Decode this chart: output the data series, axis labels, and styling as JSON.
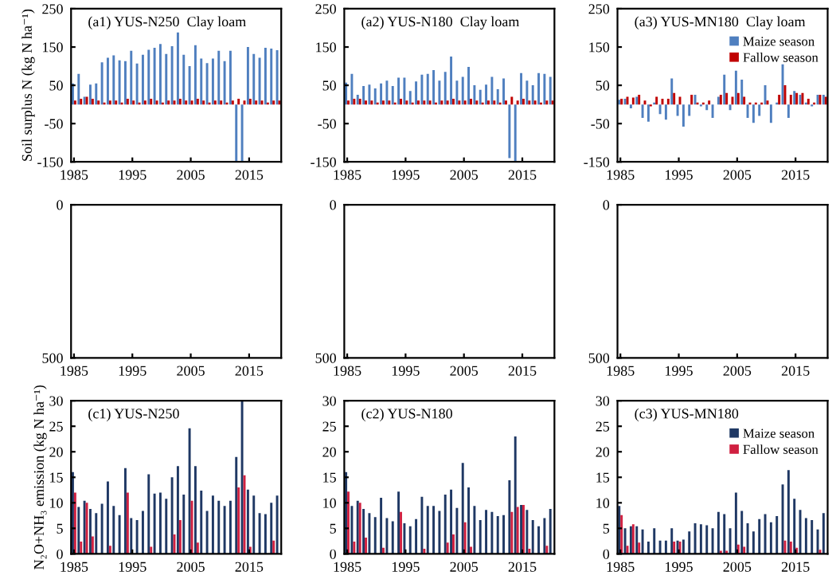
{
  "chart_data": [
    {
      "type": "bar",
      "title": "(a1) YUS-N250  Clay loam",
      "ylabel": "Soil surplus N (kg N ha⁻¹)",
      "x": [
        1985,
        1986,
        1987,
        1988,
        1989,
        1990,
        1991,
        1992,
        1993,
        1994,
        1995,
        1996,
        1997,
        1998,
        1999,
        2000,
        2001,
        2002,
        2003,
        2004,
        2005,
        2006,
        2007,
        2008,
        2009,
        2010,
        2011,
        2012,
        2013,
        2014,
        2015,
        2016,
        2017,
        2018,
        2019,
        2020
      ],
      "xlim": [
        1984.5,
        2020.5
      ],
      "xticks": [
        1985,
        1995,
        2005,
        2015
      ],
      "ylim": [
        -150,
        250
      ],
      "yticks": [
        -150,
        -50,
        50,
        150,
        250
      ],
      "legend": false,
      "series": [
        {
          "color": "#4f7fbf",
          "values": [
            55,
            80,
            20,
            52,
            55,
            110,
            122,
            128,
            115,
            113,
            140,
            107,
            130,
            143,
            148,
            158,
            132,
            152,
            188,
            130,
            100,
            155,
            120,
            108,
            120,
            140,
            113,
            140,
            -150,
            -150,
            150,
            132,
            122,
            148,
            146,
            142
          ]
        },
        {
          "color": "#c00000",
          "values": [
            10,
            15,
            20,
            15,
            10,
            5,
            10,
            10,
            5,
            15,
            10,
            5,
            10,
            15,
            10,
            5,
            10,
            10,
            15,
            10,
            10,
            15,
            10,
            5,
            10,
            10,
            5,
            10,
            15,
            10,
            15,
            10,
            10,
            5,
            10,
            10
          ]
        }
      ]
    },
    {
      "type": "bar",
      "title": "(a2) YUS-N180  Clay loam",
      "x": [
        1985,
        1986,
        1987,
        1988,
        1989,
        1990,
        1991,
        1992,
        1993,
        1994,
        1995,
        1996,
        1997,
        1998,
        1999,
        2000,
        2001,
        2002,
        2003,
        2004,
        2005,
        2006,
        2007,
        2008,
        2009,
        2010,
        2011,
        2012,
        2013,
        2014,
        2015,
        2016,
        2017,
        2018,
        2019,
        2020
      ],
      "xlim": [
        1984.5,
        2020.5
      ],
      "xticks": [
        1985,
        1995,
        2005,
        2015
      ],
      "ylim": [
        -150,
        250
      ],
      "yticks": [
        -150,
        -50,
        50,
        150,
        250
      ],
      "legend": false,
      "series": [
        {
          "color": "#4f7fbf",
          "values": [
            57,
            80,
            25,
            48,
            52,
            42,
            55,
            62,
            48,
            70,
            70,
            35,
            60,
            78,
            80,
            90,
            62,
            85,
            125,
            62,
            72,
            98,
            50,
            38,
            52,
            72,
            40,
            68,
            -140,
            -150,
            82,
            62,
            50,
            82,
            80,
            72
          ]
        },
        {
          "color": "#c00000",
          "values": [
            10,
            15,
            15,
            10,
            10,
            5,
            10,
            10,
            5,
            15,
            10,
            5,
            10,
            10,
            10,
            5,
            10,
            10,
            15,
            10,
            10,
            15,
            10,
            5,
            10,
            10,
            5,
            10,
            20,
            10,
            15,
            10,
            10,
            5,
            10,
            10
          ]
        }
      ]
    },
    {
      "type": "bar",
      "title": "(a3) YUS-MN180  Clay loam",
      "x": [
        1985,
        1986,
        1987,
        1988,
        1989,
        1990,
        1991,
        1992,
        1993,
        1994,
        1995,
        1996,
        1997,
        1998,
        1999,
        2000,
        2001,
        2002,
        2003,
        2004,
        2005,
        2006,
        2007,
        2008,
        2009,
        2010,
        2011,
        2012,
        2013,
        2014,
        2015,
        2016,
        2017,
        2018,
        2019,
        2020
      ],
      "xlim": [
        1984.5,
        2020.5
      ],
      "xticks": [
        1985,
        1995,
        2005,
        2015
      ],
      "ylim": [
        -150,
        250
      ],
      "yticks": [
        -150,
        -50,
        50,
        150,
        250
      ],
      "legend": "top right",
      "series": [
        {
          "name": "Maize season",
          "color": "#4f7fbf",
          "values": [
            12,
            15,
            -10,
            20,
            -35,
            -45,
            5,
            -25,
            -40,
            68,
            -30,
            -58,
            -30,
            25,
            -5,
            -15,
            -35,
            20,
            78,
            -15,
            88,
            65,
            -35,
            -48,
            -30,
            50,
            -48,
            5,
            105,
            -35,
            35,
            25,
            5,
            -5,
            25,
            25
          ]
        },
        {
          "name": "Fallow season",
          "color": "#c00000",
          "values": [
            15,
            20,
            18,
            25,
            10,
            -5,
            20,
            15,
            15,
            30,
            20,
            0,
            25,
            5,
            5,
            10,
            0,
            25,
            30,
            20,
            30,
            20,
            5,
            5,
            5,
            10,
            0,
            25,
            50,
            25,
            30,
            30,
            15,
            5,
            25,
            20
          ]
        }
      ]
    },
    {
      "type": "bar",
      "xlim": [
        1984.5,
        2020.5
      ],
      "xticks": [
        1985,
        1995,
        2005,
        2015
      ],
      "ylim": [
        500,
        0
      ],
      "yticks": [
        0,
        500
      ],
      "legend": false
    },
    {
      "type": "bar",
      "xlim": [
        1984.5,
        2020.5
      ],
      "xticks": [
        1985,
        1995,
        2005,
        2015
      ],
      "ylim": [
        500,
        0
      ],
      "yticks": [
        0,
        500
      ],
      "legend": false
    },
    {
      "type": "bar",
      "xlim": [
        1984.5,
        2020.5
      ],
      "xticks": [
        1985,
        1995,
        2005,
        2015
      ],
      "ylim": [
        500,
        0
      ],
      "yticks": [
        0,
        500
      ],
      "legend": false
    },
    {
      "type": "bar",
      "title": "(c1) YUS-N250",
      "ylabel": "N₂O+NH₃ emission (kg N ha⁻¹)",
      "x": [
        1985,
        1986,
        1987,
        1988,
        1989,
        1990,
        1991,
        1992,
        1993,
        1994,
        1995,
        1996,
        1997,
        1998,
        1999,
        2000,
        2001,
        2002,
        2003,
        2004,
        2005,
        2006,
        2007,
        2008,
        2009,
        2010,
        2011,
        2012,
        2013,
        2014,
        2015,
        2016,
        2017,
        2018,
        2019,
        2020
      ],
      "xlim": [
        1984.5,
        2020.5
      ],
      "xticks": [
        1985,
        1995,
        2005,
        2015
      ],
      "ylim": [
        0,
        30
      ],
      "yticks": [
        0,
        5,
        10,
        15,
        20,
        25,
        30
      ],
      "legend": false,
      "series": [
        {
          "color": "#1f3864",
          "values": [
            16,
            9.2,
            10.4,
            8.8,
            8,
            9.8,
            14.2,
            9.4,
            7.6,
            16.8,
            7,
            6.6,
            8.4,
            15.6,
            11.8,
            12,
            10.8,
            15,
            17.2,
            11.6,
            24.6,
            17.2,
            12.4,
            8.4,
            11.4,
            10.4,
            9.4,
            10.4,
            19,
            30,
            12.6,
            11.4,
            8,
            7.8,
            10,
            11.4
          ]
        },
        {
          "color": "#d02040",
          "values": [
            12,
            2.4,
            10,
            3.4,
            0,
            0,
            1.6,
            0,
            0,
            12,
            0,
            0,
            0,
            1.4,
            0,
            0,
            0,
            3.8,
            6.6,
            0,
            10.4,
            2.2,
            0,
            0,
            0,
            0,
            0,
            0,
            13,
            15.4,
            1.4,
            0,
            0,
            0,
            2.6,
            0
          ]
        }
      ]
    },
    {
      "type": "bar",
      "title": "(c2) YUS-N180",
      "x": [
        1985,
        1986,
        1987,
        1988,
        1989,
        1990,
        1991,
        1992,
        1993,
        1994,
        1995,
        1996,
        1997,
        1998,
        1999,
        2000,
        2001,
        2002,
        2003,
        2004,
        2005,
        2006,
        2007,
        2008,
        2009,
        2010,
        2011,
        2012,
        2013,
        2014,
        2015,
        2016,
        2017,
        2018,
        2019,
        2020
      ],
      "xlim": [
        1984.5,
        2020.5
      ],
      "xticks": [
        1985,
        1995,
        2005,
        2015
      ],
      "ylim": [
        0,
        30
      ],
      "yticks": [
        0,
        5,
        10,
        15,
        20,
        25,
        30
      ],
      "legend": false,
      "series": [
        {
          "color": "#1f3864",
          "values": [
            16,
            9.4,
            10.4,
            8.8,
            8,
            7.2,
            11,
            7,
            6.4,
            12.2,
            6,
            5.4,
            6.8,
            11.2,
            9.4,
            9.4,
            8.4,
            11.6,
            12.6,
            9,
            17.8,
            13,
            9.4,
            6.6,
            8.6,
            8.2,
            7.4,
            7.6,
            14.4,
            23,
            9.6,
            8.6,
            6.6,
            5.4,
            7,
            8.8
          ]
        },
        {
          "color": "#d02040",
          "values": [
            12.2,
            2.4,
            10,
            3.2,
            0,
            0,
            1.2,
            0,
            0,
            8.2,
            0,
            0,
            0,
            1,
            0,
            0,
            0,
            2.2,
            3.8,
            0,
            6.2,
            1.4,
            0,
            0,
            0,
            0,
            0,
            0,
            8.2,
            9.2,
            9.6,
            1,
            0,
            0,
            1.6,
            0
          ]
        }
      ]
    },
    {
      "type": "bar",
      "title": "(c3) YUS-MN180",
      "x": [
        1985,
        1986,
        1987,
        1988,
        1989,
        1990,
        1991,
        1992,
        1993,
        1994,
        1995,
        1996,
        1997,
        1998,
        1999,
        2000,
        2001,
        2002,
        2003,
        2004,
        2005,
        2006,
        2007,
        2008,
        2009,
        2010,
        2011,
        2012,
        2013,
        2014,
        2015,
        2016,
        2017,
        2018,
        2019,
        2020
      ],
      "xlim": [
        1984.5,
        2020.5
      ],
      "xticks": [
        1985,
        1995,
        2005,
        2015
      ],
      "ylim": [
        0,
        30
      ],
      "yticks": [
        0,
        5,
        10,
        15,
        20,
        25,
        30
      ],
      "legend": "top right",
      "series": [
        {
          "name": "Maize season",
          "color": "#1f3864",
          "values": [
            9.4,
            5,
            5.4,
            5.4,
            4.8,
            2.4,
            5,
            2.6,
            2.6,
            5,
            2.6,
            2.8,
            4.4,
            6,
            5.8,
            5.6,
            5,
            8.2,
            7.8,
            5,
            12,
            8.4,
            6,
            4.4,
            6.8,
            7.8,
            6.2,
            7.4,
            13.6,
            16.4,
            10.8,
            8.6,
            7,
            6.6,
            4.8,
            8
          ]
        },
        {
          "name": "Fallow season",
          "color": "#d02040",
          "values": [
            7.6,
            1.6,
            5.8,
            2.2,
            0,
            0,
            0,
            0,
            0,
            2.4,
            2.4,
            0,
            0,
            0,
            0,
            0,
            0,
            0.6,
            0.6,
            0,
            1.8,
            1.4,
            0,
            0,
            0,
            0,
            0,
            0,
            2.6,
            2.4,
            1.2,
            0,
            0,
            0,
            0.8,
            null
          ]
        }
      ]
    }
  ]
}
